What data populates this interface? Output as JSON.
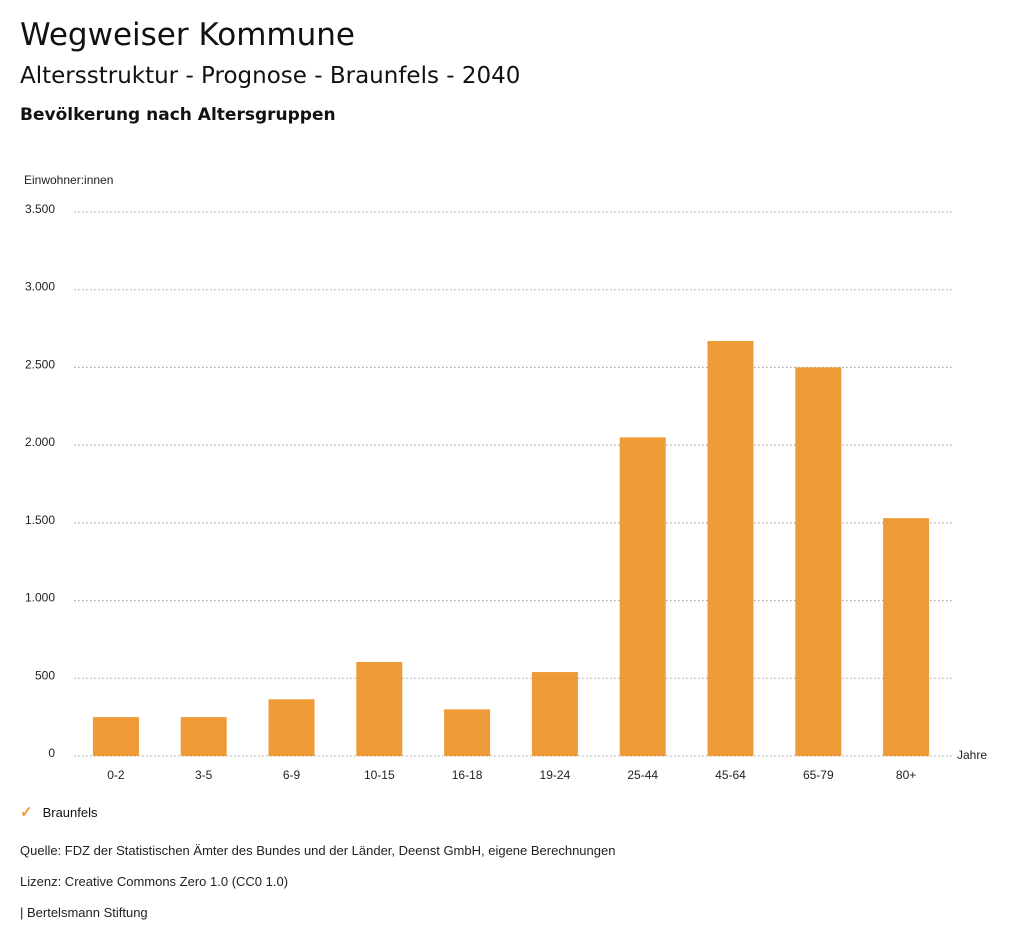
{
  "header": {
    "title": "Wegweiser Kommune",
    "subtitle": "Altersstruktur - Prognose - Braunfels - 2040",
    "chart_heading": "Bevölkerung nach Altersgruppen"
  },
  "chart_data": {
    "type": "bar",
    "title": "Bevölkerung nach Altersgruppen",
    "ylabel": "Einwohner:innen",
    "xlabel": "Jahre",
    "ylim": [
      0,
      3500
    ],
    "yticks": [
      0,
      500,
      1000,
      1500,
      2000,
      2500,
      3000,
      3500
    ],
    "ytick_labels": [
      "0",
      "500",
      "1.000",
      "1.500",
      "2.000",
      "2.500",
      "3.000",
      "3.500"
    ],
    "grid": true,
    "categories": [
      "0-2",
      "3-5",
      "6-9",
      "10-15",
      "16-18",
      "19-24",
      "25-44",
      "45-64",
      "65-79",
      "80+"
    ],
    "series": [
      {
        "name": "Braunfels",
        "values": [
          250,
          250,
          365,
          605,
          300,
          540,
          2050,
          2670,
          2500,
          1530
        ]
      }
    ],
    "legend_position": "bottom-left"
  },
  "colors": {
    "bar": "#ed9a37",
    "grid": "#999999"
  },
  "legend": {
    "items": [
      {
        "label": "Braunfels",
        "icon": "check-icon"
      }
    ]
  },
  "footer": {
    "source": "Quelle: FDZ der Statistischen Ämter des Bundes und der Länder, Deenst GmbH, eigene Berechnungen",
    "license": "Lizenz: Creative Commons Zero 1.0 (CC0 1.0)",
    "credit": "| Bertelsmann Stiftung"
  }
}
